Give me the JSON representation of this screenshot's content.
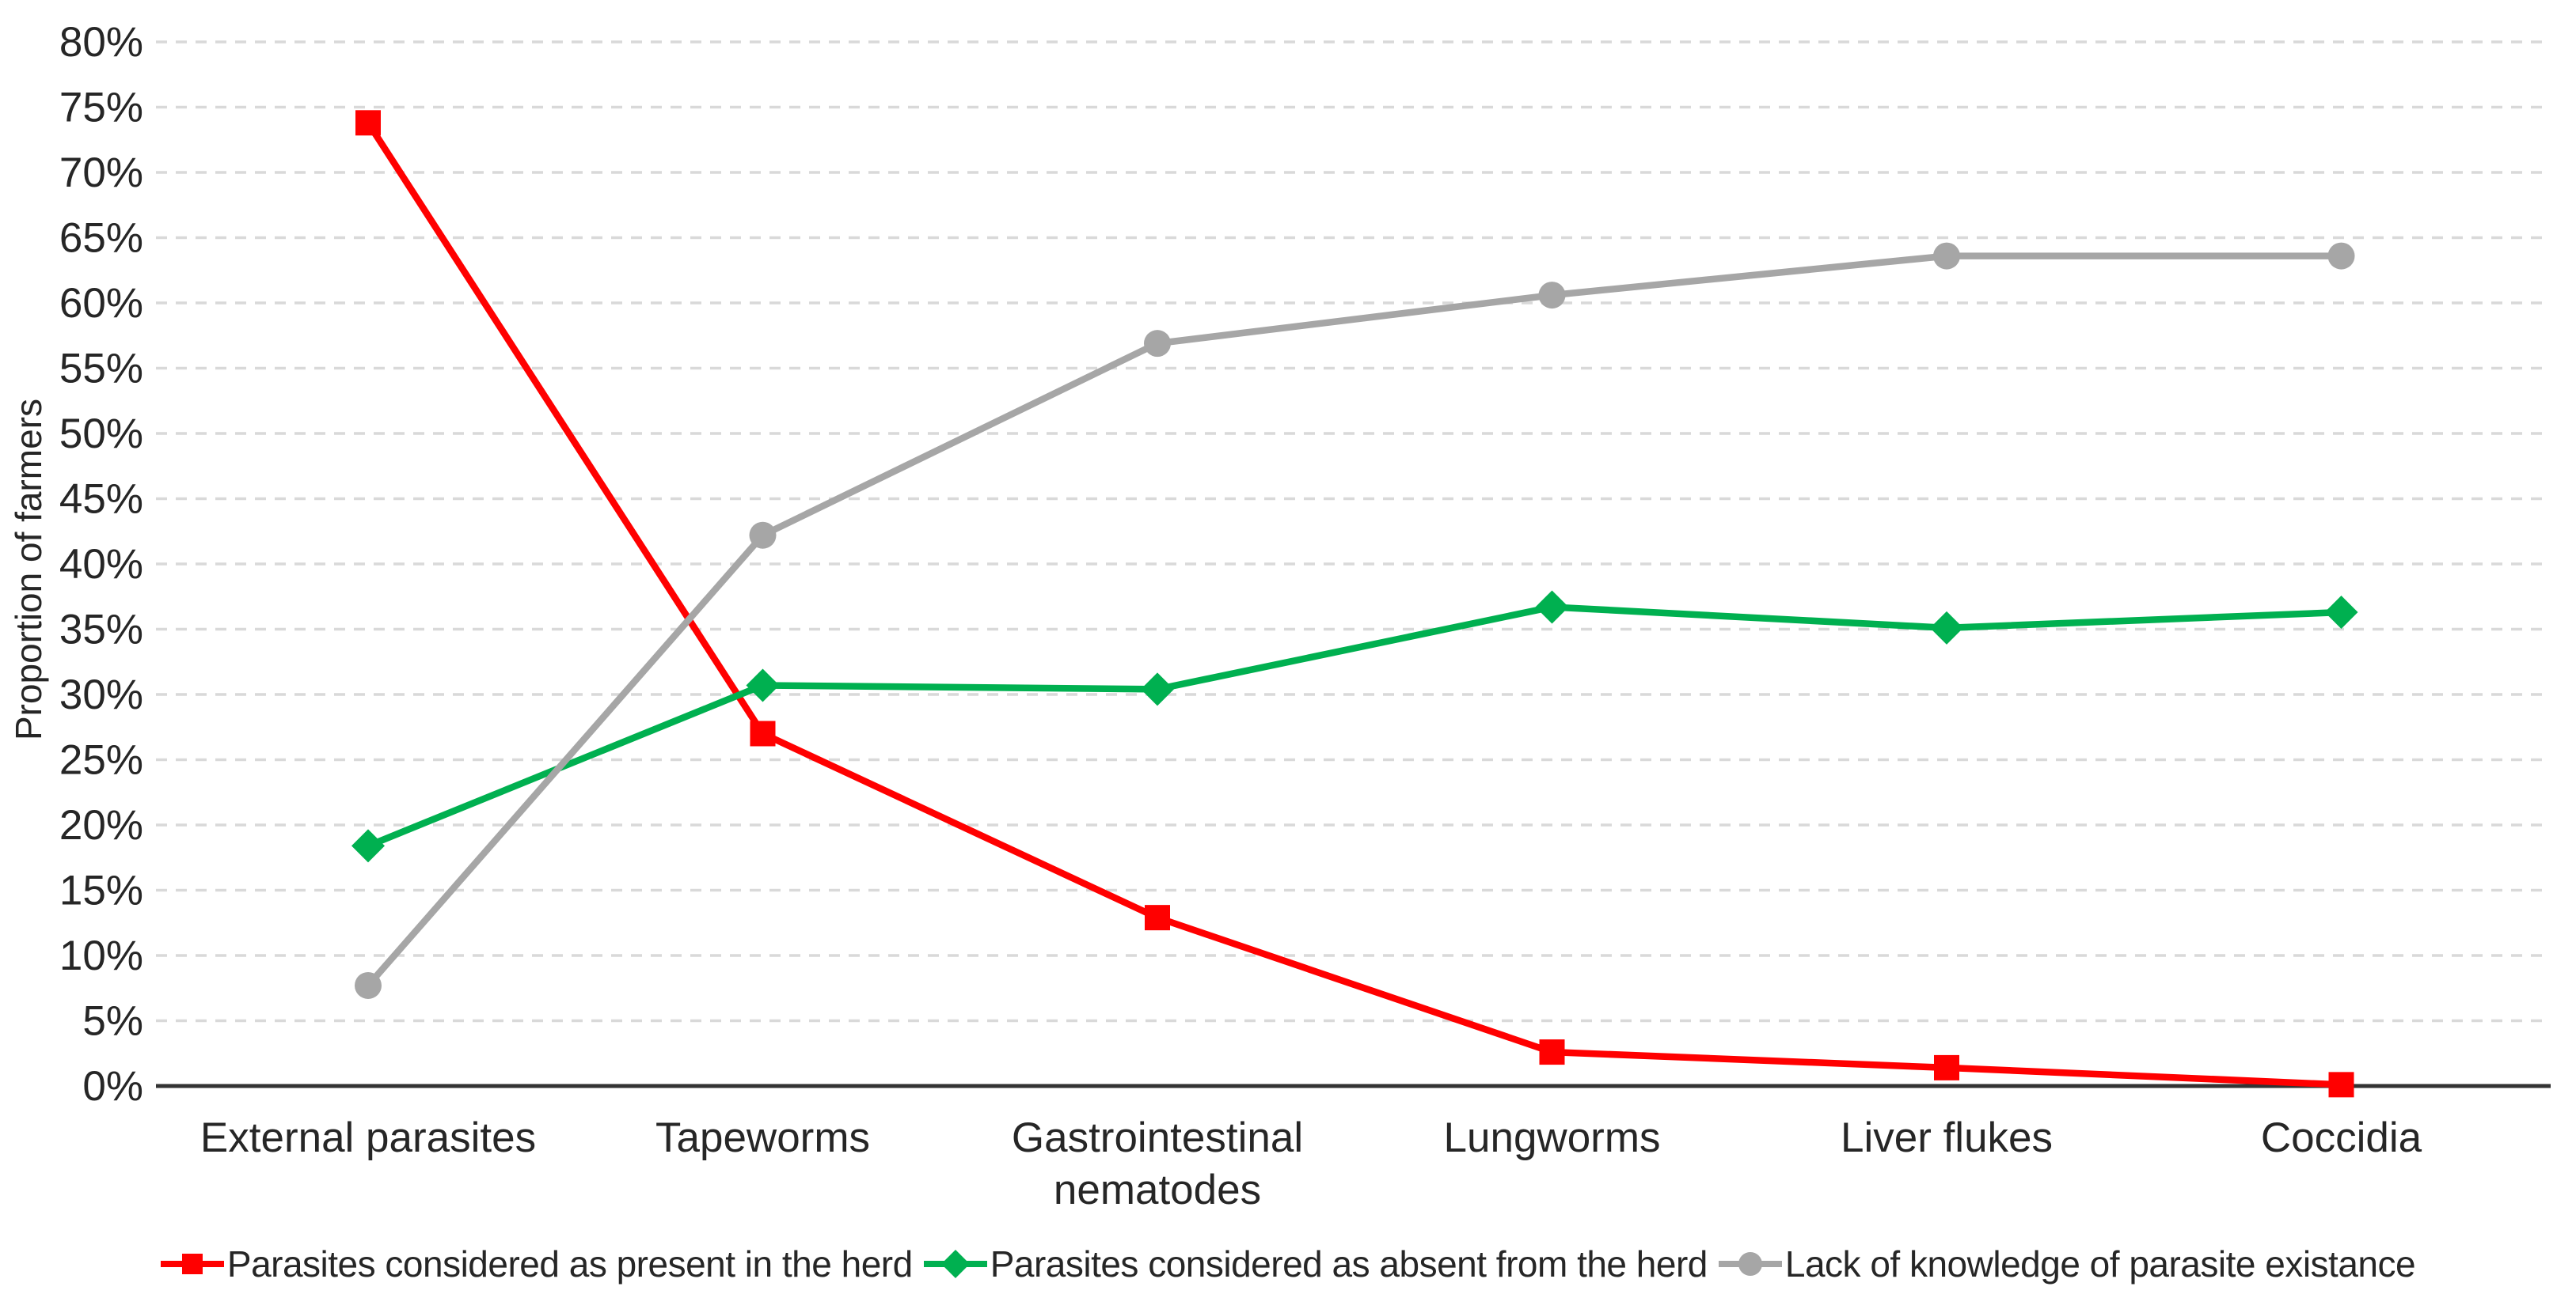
{
  "chart_data": {
    "type": "line",
    "title": "",
    "categories": [
      "External parasites",
      "Tapeworms",
      "Gastrointestinal\nnematodes",
      "Lungworms",
      "Liver flukes",
      "Coccidia"
    ],
    "series": [
      {
        "name": "Parasites considered as present in the herd",
        "marker": "square",
        "color": "#FF0000",
        "values": [
          73.8,
          27.0,
          12.9,
          2.6,
          1.4,
          0.1
        ]
      },
      {
        "name": "Parasites considered as absent from the herd",
        "marker": "diamond",
        "color": "#00B050",
        "values": [
          18.4,
          30.7,
          30.4,
          36.7,
          35.1,
          36.3
        ]
      },
      {
        "name": "Lack of knowledge of parasite existance",
        "marker": "circle",
        "color": "#A6A6A6",
        "values": [
          7.7,
          42.2,
          56.9,
          60.6,
          63.6,
          63.6
        ]
      }
    ],
    "yaxis": {
      "label": "Proportion of farmers",
      "min": 0,
      "max": 80,
      "step": 5,
      "unit": "%"
    },
    "xlabel": "",
    "grid": "dashed-horizontal",
    "legend_position": "bottom",
    "colors": {
      "gridline": "#D9D9D9",
      "axis": "#333333",
      "text": "#262626"
    }
  }
}
